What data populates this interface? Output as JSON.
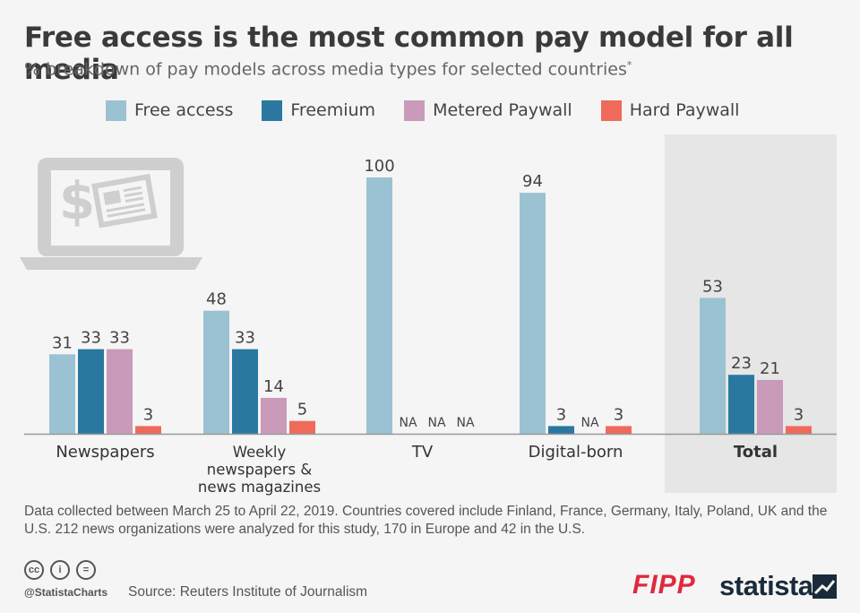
{
  "title": "Free access is the most common pay model for all media",
  "subtitle": "% breakdown of pay models across media types for selected countries",
  "subtitle_mark": "*",
  "colors": {
    "free_access": "#9bc2d2",
    "freemium": "#2a78a0",
    "metered_paywall": "#c99ab9",
    "hard_paywall": "#ef6a5a",
    "highlight_band": "#e6e6e6",
    "icon_gray": "#cfcfcf"
  },
  "chart_data": {
    "type": "bar",
    "title": "Free access is the most common pay model for all media",
    "ylabel": "",
    "xlabel": "",
    "ylim": [
      0,
      100
    ],
    "categories": [
      "Newspapers",
      "Weekly newspapers & news magazines",
      "TV",
      "Digital-born",
      "Total"
    ],
    "category_lines": [
      [
        "Newspapers"
      ],
      [
        "Weekly",
        "newspapers &",
        "news magazines"
      ],
      [
        "TV"
      ],
      [
        "Digital-born"
      ],
      [
        "Total"
      ]
    ],
    "highlighted_category": "Total",
    "series": [
      {
        "name": "Free access",
        "values": [
          31,
          48,
          100,
          94,
          53
        ],
        "labels": [
          "31",
          "48",
          "100",
          "94",
          "53"
        ]
      },
      {
        "name": "Freemium",
        "values": [
          33,
          33,
          null,
          3,
          23
        ],
        "labels": [
          "33",
          "33",
          "NA",
          "3",
          "23"
        ]
      },
      {
        "name": "Metered Paywall",
        "values": [
          33,
          14,
          null,
          null,
          21
        ],
        "labels": [
          "33",
          "14",
          "NA",
          "NA",
          "21"
        ]
      },
      {
        "name": "Hard Paywall",
        "values": [
          3,
          5,
          null,
          3,
          3
        ],
        "labels": [
          "3",
          "5",
          "NA",
          "3",
          "3"
        ]
      }
    ]
  },
  "legend": [
    "Free access",
    "Freemium",
    "Metered Paywall",
    "Hard Paywall"
  ],
  "note": "Data collected between March 25 to April 22, 2019. Countries covered include Finland, France, Germany, Italy, Poland, UK and the U.S. 212 news organizations were analyzed for this study, 170 in Europe and 42 in the U.S.",
  "footer": {
    "handle": "@StatistaCharts",
    "source": "Source: Reuters Institute of Journalism",
    "partner_logo": "FIPP",
    "brand_logo": "statista",
    "license_icons": [
      "cc",
      "i",
      "="
    ]
  },
  "icon": "laptop-paywall-icon"
}
